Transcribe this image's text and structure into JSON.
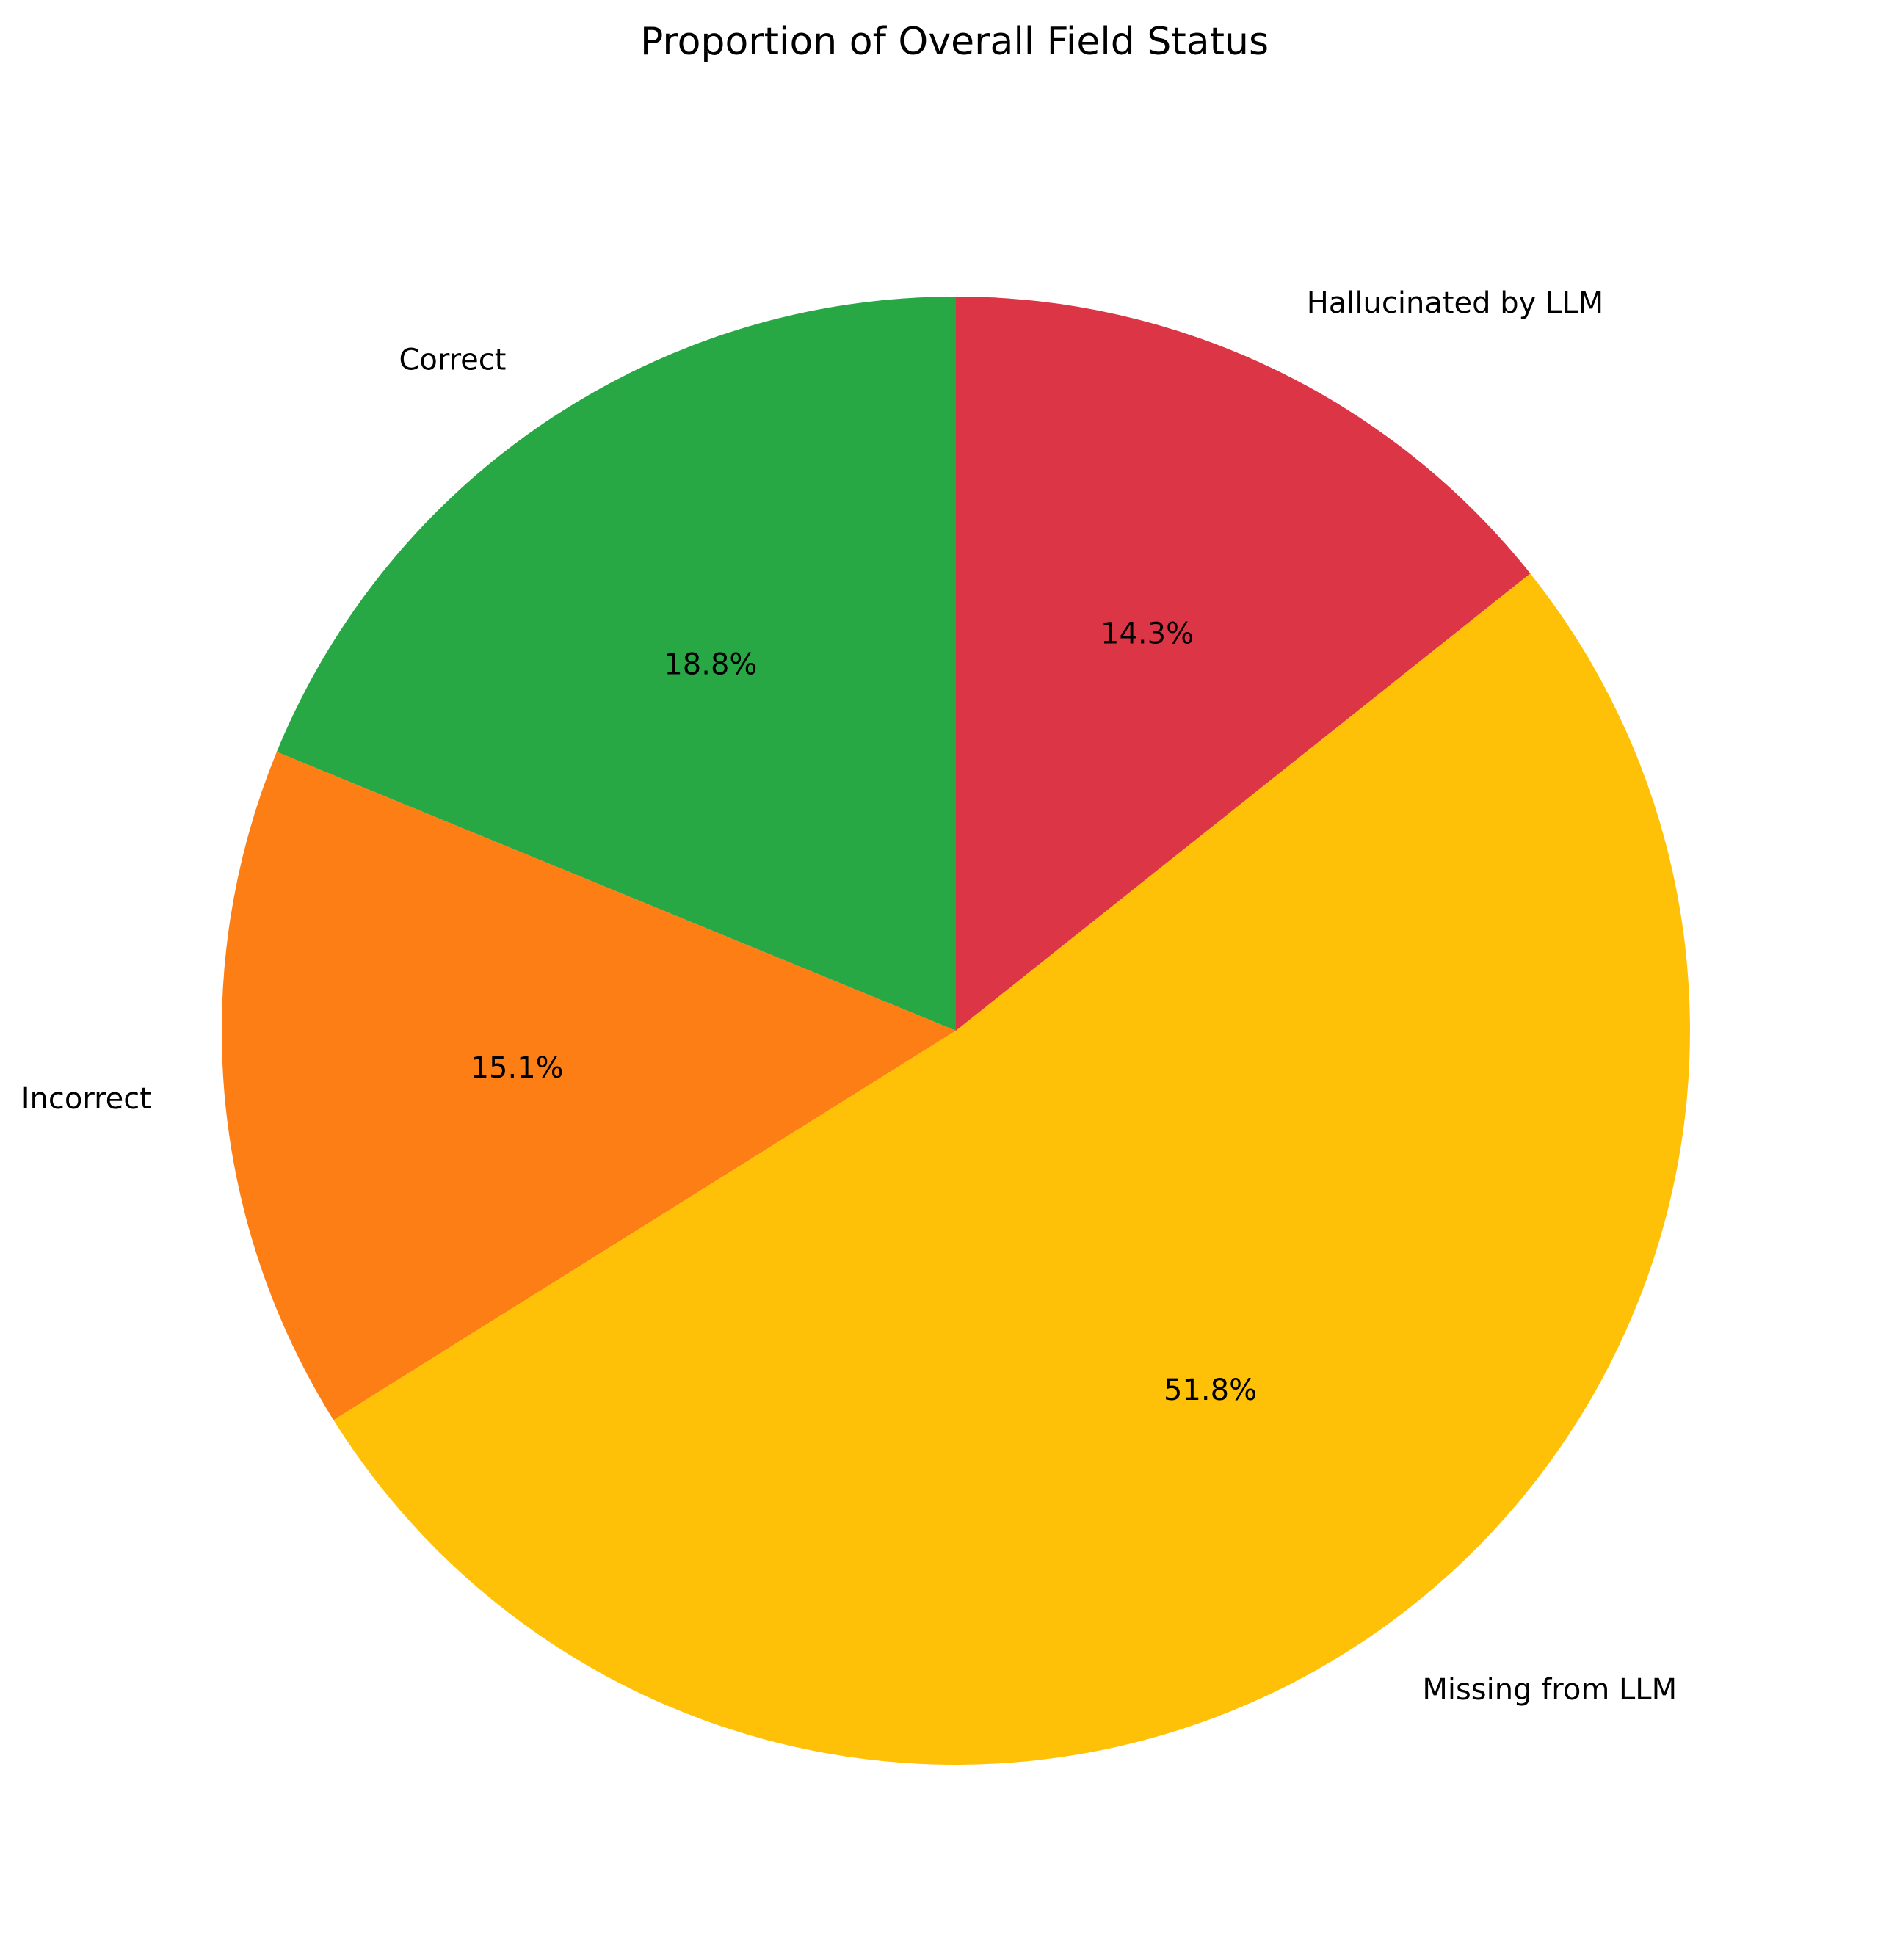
{
  "chart_data": {
    "type": "pie",
    "title": "Proportion of Overall Field Status",
    "start_angle_deg": 90,
    "direction": "counterclockwise",
    "slices": [
      {
        "label": "Correct",
        "value": 18.8,
        "pct_label": "18.8%",
        "color": "#28a745"
      },
      {
        "label": "Incorrect",
        "value": 15.1,
        "pct_label": "15.1%",
        "color": "#fd7e14"
      },
      {
        "label": "Missing from LLM",
        "value": 51.8,
        "pct_label": "51.8%",
        "color": "#ffc107"
      },
      {
        "label": "Hallucinated by LLM",
        "value": 14.3,
        "pct_label": "14.3%",
        "color": "#dc3545"
      }
    ]
  }
}
